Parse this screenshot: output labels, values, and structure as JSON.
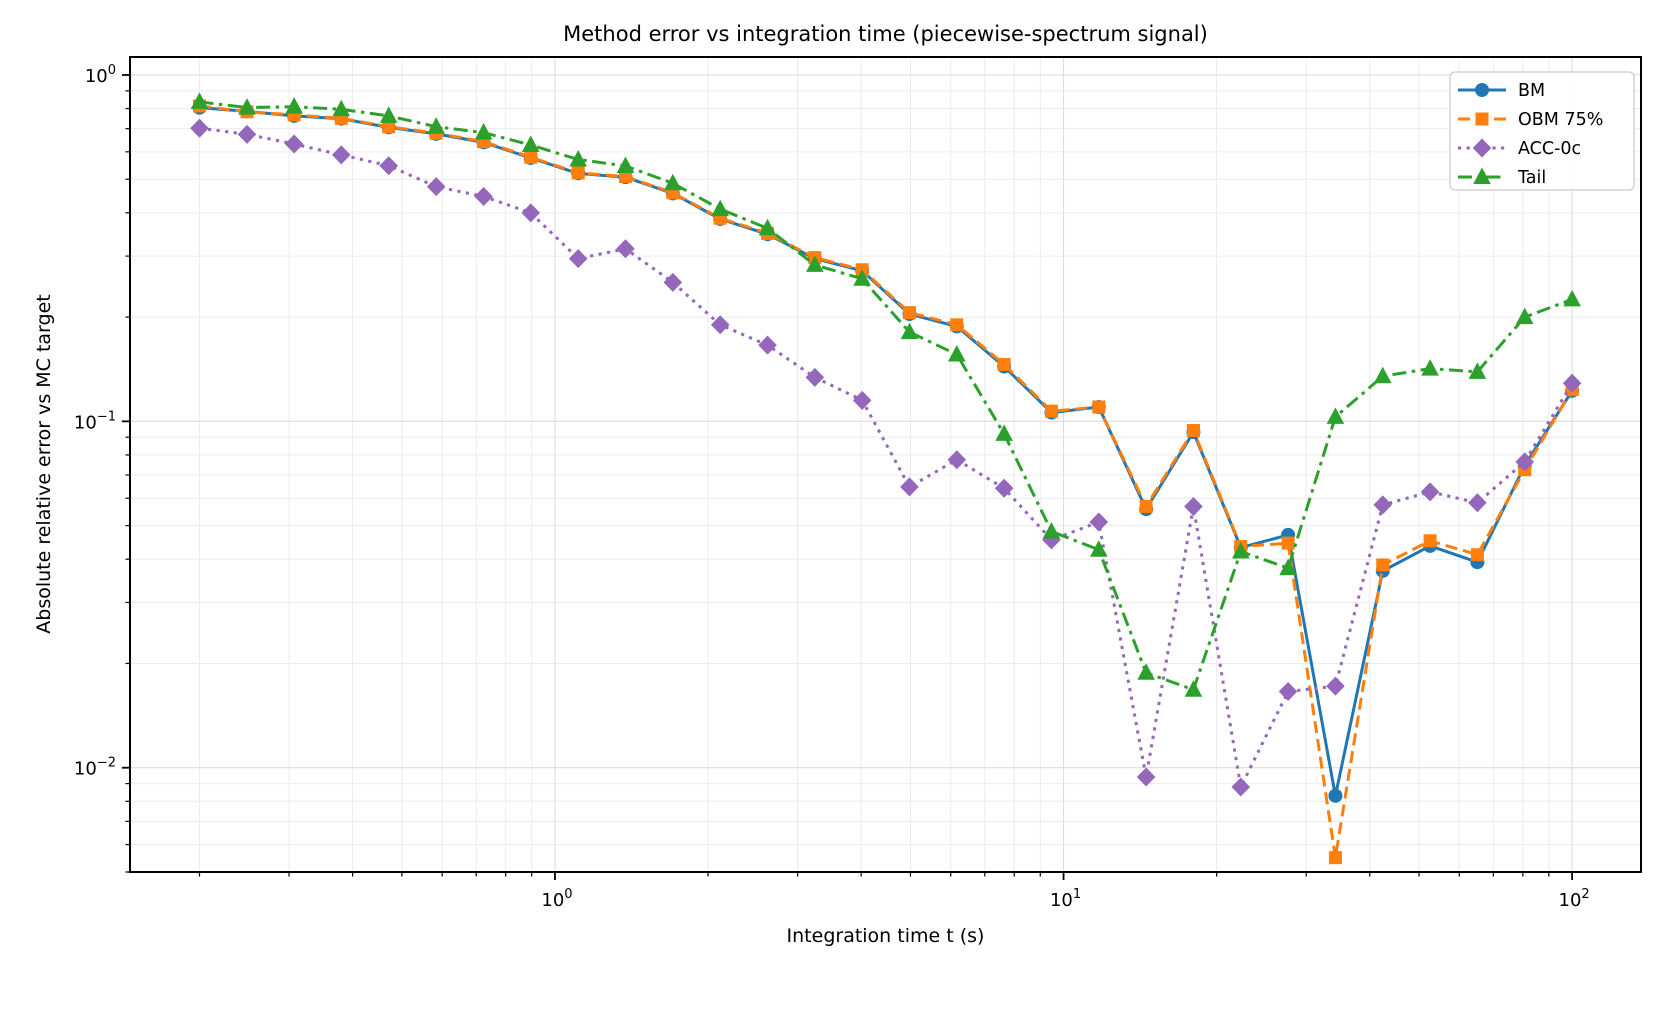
{
  "figure": {
    "title": "Method error vs integration time (piecewise-spectrum signal)",
    "xlabel": "Integration time t (s)",
    "ylabel": "Absolute relative error vs MC target"
  },
  "chart_data": {
    "type": "line",
    "title": "Method error vs integration time (piecewise-spectrum signal)",
    "xlabel": "Integration time t (s)",
    "ylabel": "Absolute relative error vs MC target",
    "x_scale": "log",
    "y_scale": "log",
    "xlim": [
      0.146,
      136.6
    ],
    "ylim": [
      0.005,
      1.127
    ],
    "grid": "both",
    "legend_position": "upper right",
    "x_tick_labels": [
      {
        "value": 1,
        "base": "10",
        "exponent": "0"
      },
      {
        "value": 10,
        "base": "10",
        "exponent": "1"
      },
      {
        "value": 100,
        "base": "10",
        "exponent": "2"
      }
    ],
    "y_tick_labels": [
      {
        "value": 1,
        "base": "10",
        "exponent": "0"
      },
      {
        "value": 0.1,
        "base": "10",
        "exponent": "-1"
      },
      {
        "value": 0.01,
        "base": "10",
        "exponent": "-2"
      }
    ],
    "x": [
      0.2,
      0.248,
      0.307,
      0.38,
      0.471,
      0.584,
      0.724,
      0.896,
      1.111,
      1.376,
      1.705,
      2.113,
      2.618,
      3.243,
      4.018,
      4.978,
      6.168,
      7.641,
      9.467,
      11.73,
      14.533,
      18.005,
      22.308,
      27.639,
      34.244,
      42.428,
      52.567,
      65.129,
      80.693,
      100.0
    ],
    "series": [
      {
        "name": "BM",
        "color": "#1f77b4",
        "linestyle": "solid",
        "marker": "circle",
        "values": [
          0.805,
          0.785,
          0.762,
          0.748,
          0.706,
          0.676,
          0.639,
          0.576,
          0.52,
          0.507,
          0.455,
          0.384,
          0.347,
          0.295,
          0.272,
          0.204,
          0.188,
          0.144,
          0.106,
          0.11,
          0.0558,
          0.0931,
          0.0432,
          0.047,
          0.0083,
          0.037,
          0.0437,
          0.0392,
          0.0745,
          0.1225
        ]
      },
      {
        "name": "OBM 75%",
        "color": "#ff7f0e",
        "linestyle": "dashed",
        "marker": "square",
        "values": [
          0.814,
          0.783,
          0.767,
          0.75,
          0.709,
          0.679,
          0.642,
          0.579,
          0.522,
          0.509,
          0.457,
          0.386,
          0.349,
          0.297,
          0.274,
          0.206,
          0.19,
          0.146,
          0.107,
          0.11,
          0.0568,
          0.0941,
          0.0435,
          0.0445,
          0.0055,
          0.0385,
          0.0452,
          0.0412,
          0.0725,
          0.1235
        ]
      },
      {
        "name": "ACC-0c",
        "color": "#9467bd",
        "linestyle": "dotted",
        "marker": "diamond",
        "values": [
          0.702,
          0.674,
          0.632,
          0.588,
          0.547,
          0.476,
          0.446,
          0.4,
          0.295,
          0.315,
          0.252,
          0.19,
          0.166,
          0.134,
          0.115,
          0.0647,
          0.0775,
          0.0641,
          0.0455,
          0.0512,
          0.0094,
          0.0568,
          0.0088,
          0.0166,
          0.0172,
          0.0574,
          0.0626,
          0.0582,
          0.0764,
          0.1288
        ]
      },
      {
        "name": "Tail",
        "color": "#2ca02c",
        "linestyle": "dashdot",
        "marker": "triangle",
        "values": [
          0.836,
          0.805,
          0.81,
          0.796,
          0.762,
          0.709,
          0.682,
          0.628,
          0.57,
          0.546,
          0.487,
          0.41,
          0.361,
          0.283,
          0.258,
          0.181,
          0.156,
          0.092,
          0.0481,
          0.0426,
          0.0188,
          0.0168,
          0.0421,
          0.0377,
          0.103,
          0.135,
          0.142,
          0.139,
          0.2,
          0.225
        ]
      }
    ]
  }
}
